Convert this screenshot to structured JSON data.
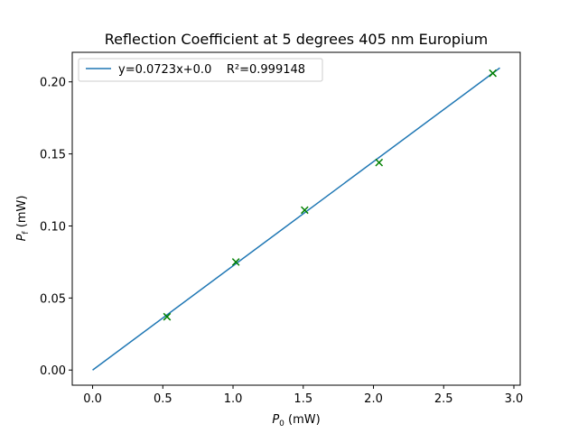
{
  "chart_data": {
    "type": "scatter",
    "title": "Reflection Coefficient at 5 degrees 405 nm Europium",
    "xlabel": {
      "symbol": "P",
      "sub": "0",
      "unit": " (mW)"
    },
    "ylabel": {
      "symbol": "P",
      "sub": "f",
      "unit": " (mW)"
    },
    "xlim": [
      -0.145,
      3.045
    ],
    "ylim": [
      -0.0105,
      0.2205
    ],
    "xticks": [
      {
        "value": 0.0,
        "label": "0.0"
      },
      {
        "value": 0.5,
        "label": "0.5"
      },
      {
        "value": 1.0,
        "label": "1.0"
      },
      {
        "value": 1.5,
        "label": "1.5"
      },
      {
        "value": 2.0,
        "label": "2.0"
      },
      {
        "value": 2.5,
        "label": "2.5"
      },
      {
        "value": 3.0,
        "label": "3.0"
      }
    ],
    "yticks": [
      {
        "value": 0.0,
        "label": "0.00"
      },
      {
        "value": 0.05,
        "label": "0.05"
      },
      {
        "value": 0.1,
        "label": "0.10"
      },
      {
        "value": 0.15,
        "label": "0.15"
      },
      {
        "value": 0.2,
        "label": "0.20"
      }
    ],
    "grid": false,
    "legend_position": "upper-left",
    "series": [
      {
        "kind": "line",
        "name": "y=0.0723x+0.0    R²=0.999148",
        "color": "#1f77b4",
        "x": [
          0.0,
          2.9
        ],
        "y": [
          0.0,
          0.2097
        ]
      },
      {
        "kind": "scatter",
        "marker": "x",
        "color": "#008000",
        "x": [
          0.53,
          1.02,
          1.51,
          2.04,
          2.85
        ],
        "y": [
          0.037,
          0.075,
          0.111,
          0.144,
          0.206
        ]
      }
    ]
  }
}
